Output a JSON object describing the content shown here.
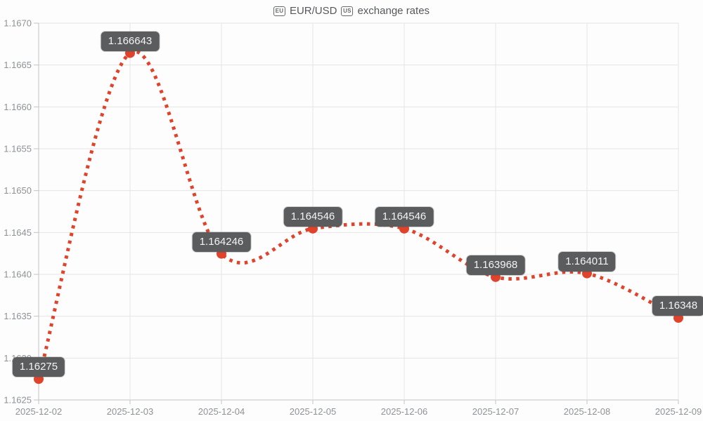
{
  "title": {
    "flag_eu_label": "EU",
    "pair": "EUR/USD",
    "flag_us_label": "US",
    "suffix": "exchange rates"
  },
  "colors": {
    "line": "#e0432c",
    "marker": "#e0432c",
    "badge_bg": "#5a5c5e",
    "badge_text": "#f4f4f4",
    "grid": "#e5e5e5",
    "axis": "#c3c3c3",
    "tick_text": "#8f9295",
    "title_text": "#55585b",
    "background": "#fdfdfd"
  },
  "chart_data": {
    "type": "line",
    "title": "EU EUR/USD US exchange rates",
    "line_style": "dotted",
    "smooth": true,
    "grid": true,
    "legend": "none",
    "x": [
      "2025-12-02",
      "2025-12-03",
      "2025-12-04",
      "2025-12-05",
      "2025-12-06",
      "2025-12-07",
      "2025-12-08",
      "2025-12-09"
    ],
    "series": [
      {
        "name": "EUR/USD",
        "values": [
          1.16275,
          1.166643,
          1.164246,
          1.164546,
          1.164546,
          1.163968,
          1.164011,
          1.16348
        ]
      }
    ],
    "point_labels": [
      "1.16275",
      "1.166643",
      "1.164246",
      "1.164546",
      "1.164546",
      "1.163968",
      "1.164011",
      "1.16348"
    ],
    "xlabel": "",
    "ylabel": "",
    "ylim": [
      1.1625,
      1.167
    ],
    "ytick_step": 0.0005,
    "yticks": [
      "1.1625",
      "1.1630",
      "1.1635",
      "1.1640",
      "1.1645",
      "1.1650",
      "1.1655",
      "1.1660",
      "1.1665",
      "1.1670"
    ]
  }
}
